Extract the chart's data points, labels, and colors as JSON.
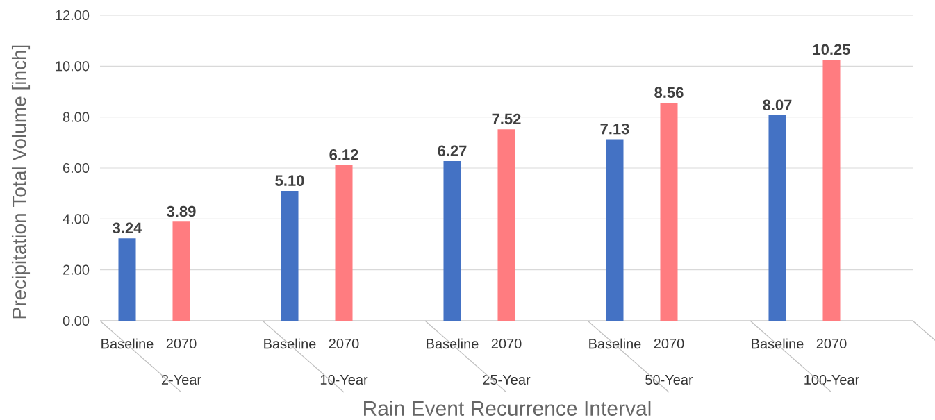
{
  "chart_data": {
    "type": "bar",
    "xlabel": "Rain Event Recurrence Interval",
    "ylabel": "Precipitation Total Volume [inch]",
    "categories": [
      "2-Year",
      "10-Year",
      "25-Year",
      "50-Year",
      "100-Year"
    ],
    "series": [
      {
        "name": "Baseline",
        "color": "#4472c4",
        "values": [
          3.24,
          5.1,
          6.27,
          7.13,
          8.07
        ],
        "value_labels": [
          "3.24",
          "5.10",
          "6.27",
          "7.13",
          "8.07"
        ]
      },
      {
        "name": "2070",
        "color": "#ff7c80",
        "values": [
          3.89,
          6.12,
          7.52,
          8.56,
          10.25
        ],
        "value_labels": [
          "3.89",
          "6.12",
          "7.52",
          "8.56",
          "10.25"
        ]
      }
    ],
    "ylim": [
      0,
      12
    ],
    "yticks": [
      {
        "value": 0,
        "label": "0.00"
      },
      {
        "value": 2,
        "label": "2.00"
      },
      {
        "value": 4,
        "label": "4.00"
      },
      {
        "value": 6,
        "label": "6.00"
      },
      {
        "value": 8,
        "label": "8.00"
      },
      {
        "value": 10,
        "label": "10.00"
      },
      {
        "value": 12,
        "label": "12.00"
      }
    ],
    "grid": "y"
  }
}
